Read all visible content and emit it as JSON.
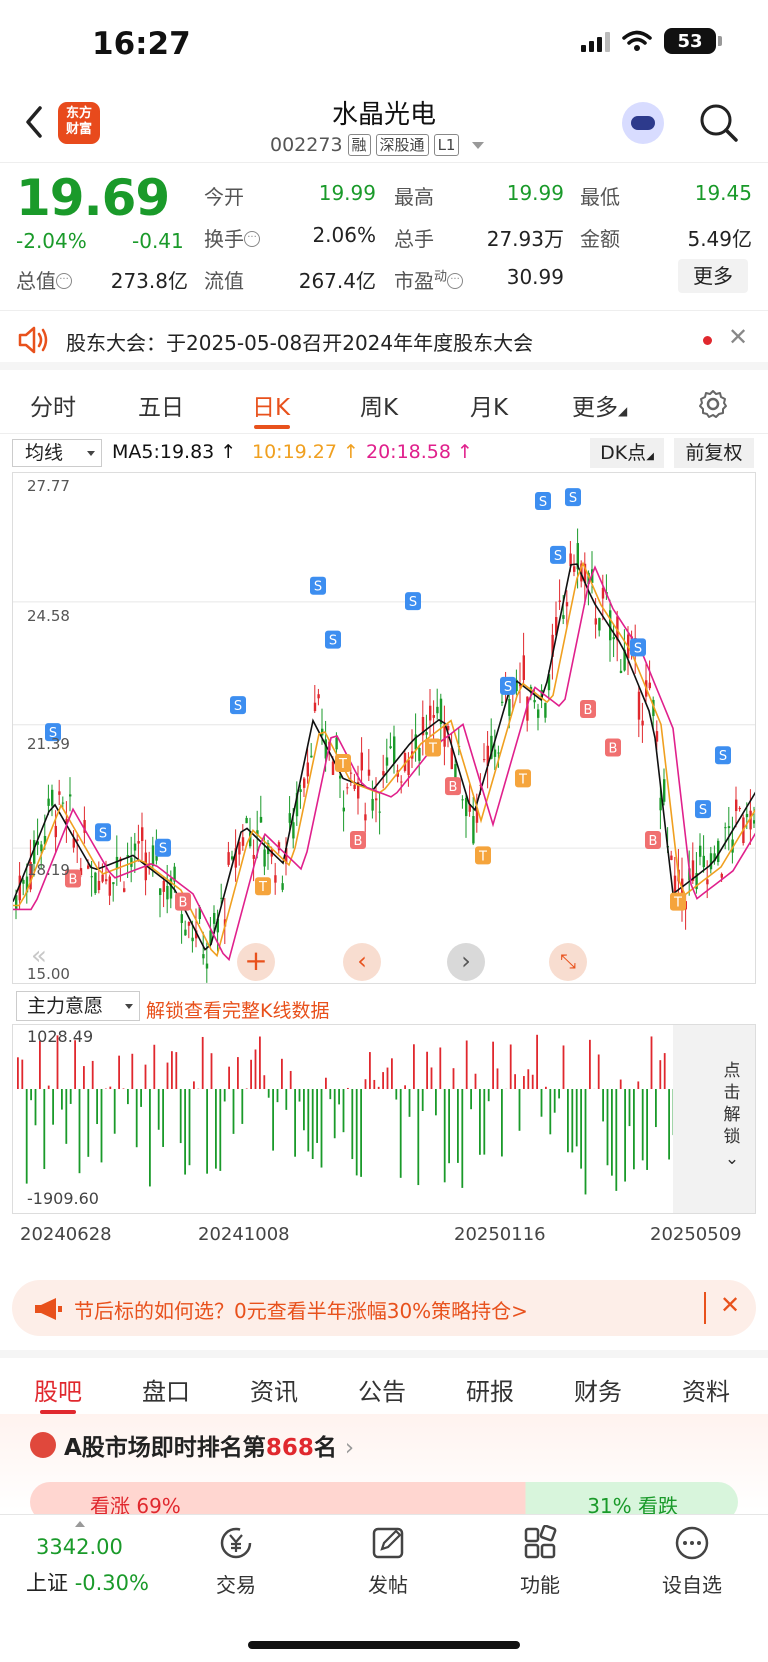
{
  "status_bar": {
    "time": "16:27",
    "battery": "53"
  },
  "header": {
    "logo_line1": "东方",
    "logo_line2": "财富",
    "stock_name": "水晶光电",
    "stock_code": "002273",
    "tags": [
      "融",
      "深股通",
      "L1"
    ]
  },
  "quote": {
    "price": "19.69",
    "change_pct": "-2.04%",
    "change": "-0.41",
    "fields": [
      {
        "label": "今开",
        "value": "19.99",
        "color": "green"
      },
      {
        "label": "最高",
        "value": "19.99",
        "color": "green"
      },
      {
        "label": "最低",
        "value": "19.45",
        "color": "green"
      },
      {
        "label": "换手",
        "value": "2.06%",
        "color": "normal"
      },
      {
        "label": "总手",
        "value": "27.93万",
        "color": "normal"
      },
      {
        "label": "金额",
        "value": "5.49亿",
        "color": "normal"
      },
      {
        "label": "总值",
        "value": "273.8亿",
        "color": "normal"
      },
      {
        "label": "流值",
        "value": "267.4亿",
        "color": "normal"
      },
      {
        "label": "市盈",
        "label_sup": "动",
        "value": "30.99",
        "color": "normal"
      }
    ],
    "more_label": "更多"
  },
  "notice": {
    "text": "股东大会：于2025-05-08召开2024年年度股东大会"
  },
  "kline_tabs": {
    "items": [
      "分时",
      "五日",
      "日K",
      "周K",
      "月K",
      "更多"
    ],
    "active": "日K"
  },
  "ma_bar": {
    "select_label": "均线",
    "ma5": "MA5:19.83",
    "ma10": "10:19.27",
    "ma20": "20:18.58",
    "dk_label": "DK点",
    "fq_label": "前复权",
    "colors": {
      "ma5": "#111111",
      "ma10": "#f0a020",
      "ma20": "#e0208c"
    }
  },
  "kchart": {
    "y_labels": [
      "27.77",
      "24.58",
      "21.39",
      "18.19",
      "15.00"
    ],
    "controls": [
      "double-left",
      "plus",
      "prev",
      "next",
      "expand"
    ]
  },
  "sub_chart": {
    "select_label": "主力意愿",
    "unlock_text": "解锁查看完整K线数据",
    "max_label": "1028.49",
    "min_label": "-1909.60",
    "side_text": [
      "点",
      "击",
      "解",
      "锁"
    ]
  },
  "dates": [
    "20240628",
    "20241008",
    "20250116",
    "20250509"
  ],
  "promo": {
    "text": "节后标的如何选？0元查看半年涨幅30%策略持仓>"
  },
  "bottom_tabs": {
    "items": [
      "股吧",
      "盘口",
      "资讯",
      "公告",
      "研报",
      "财务",
      "资料"
    ],
    "active": "股吧"
  },
  "rank": {
    "prefix": "A股市场即时排名第",
    "rank": "868",
    "suffix": "名",
    "up_label": "看涨 69%",
    "down_label": "31% 看跌"
  },
  "bottom_nav": {
    "index_value": "3342.00",
    "index_name": "上证",
    "index_change": "-0.30%",
    "items": [
      {
        "label": "交易",
        "icon": "yen-exchange-icon"
      },
      {
        "label": "发帖",
        "icon": "edit-icon"
      },
      {
        "label": "功能",
        "icon": "grid-icon"
      },
      {
        "label": "设自选",
        "icon": "more-icon"
      }
    ]
  }
}
